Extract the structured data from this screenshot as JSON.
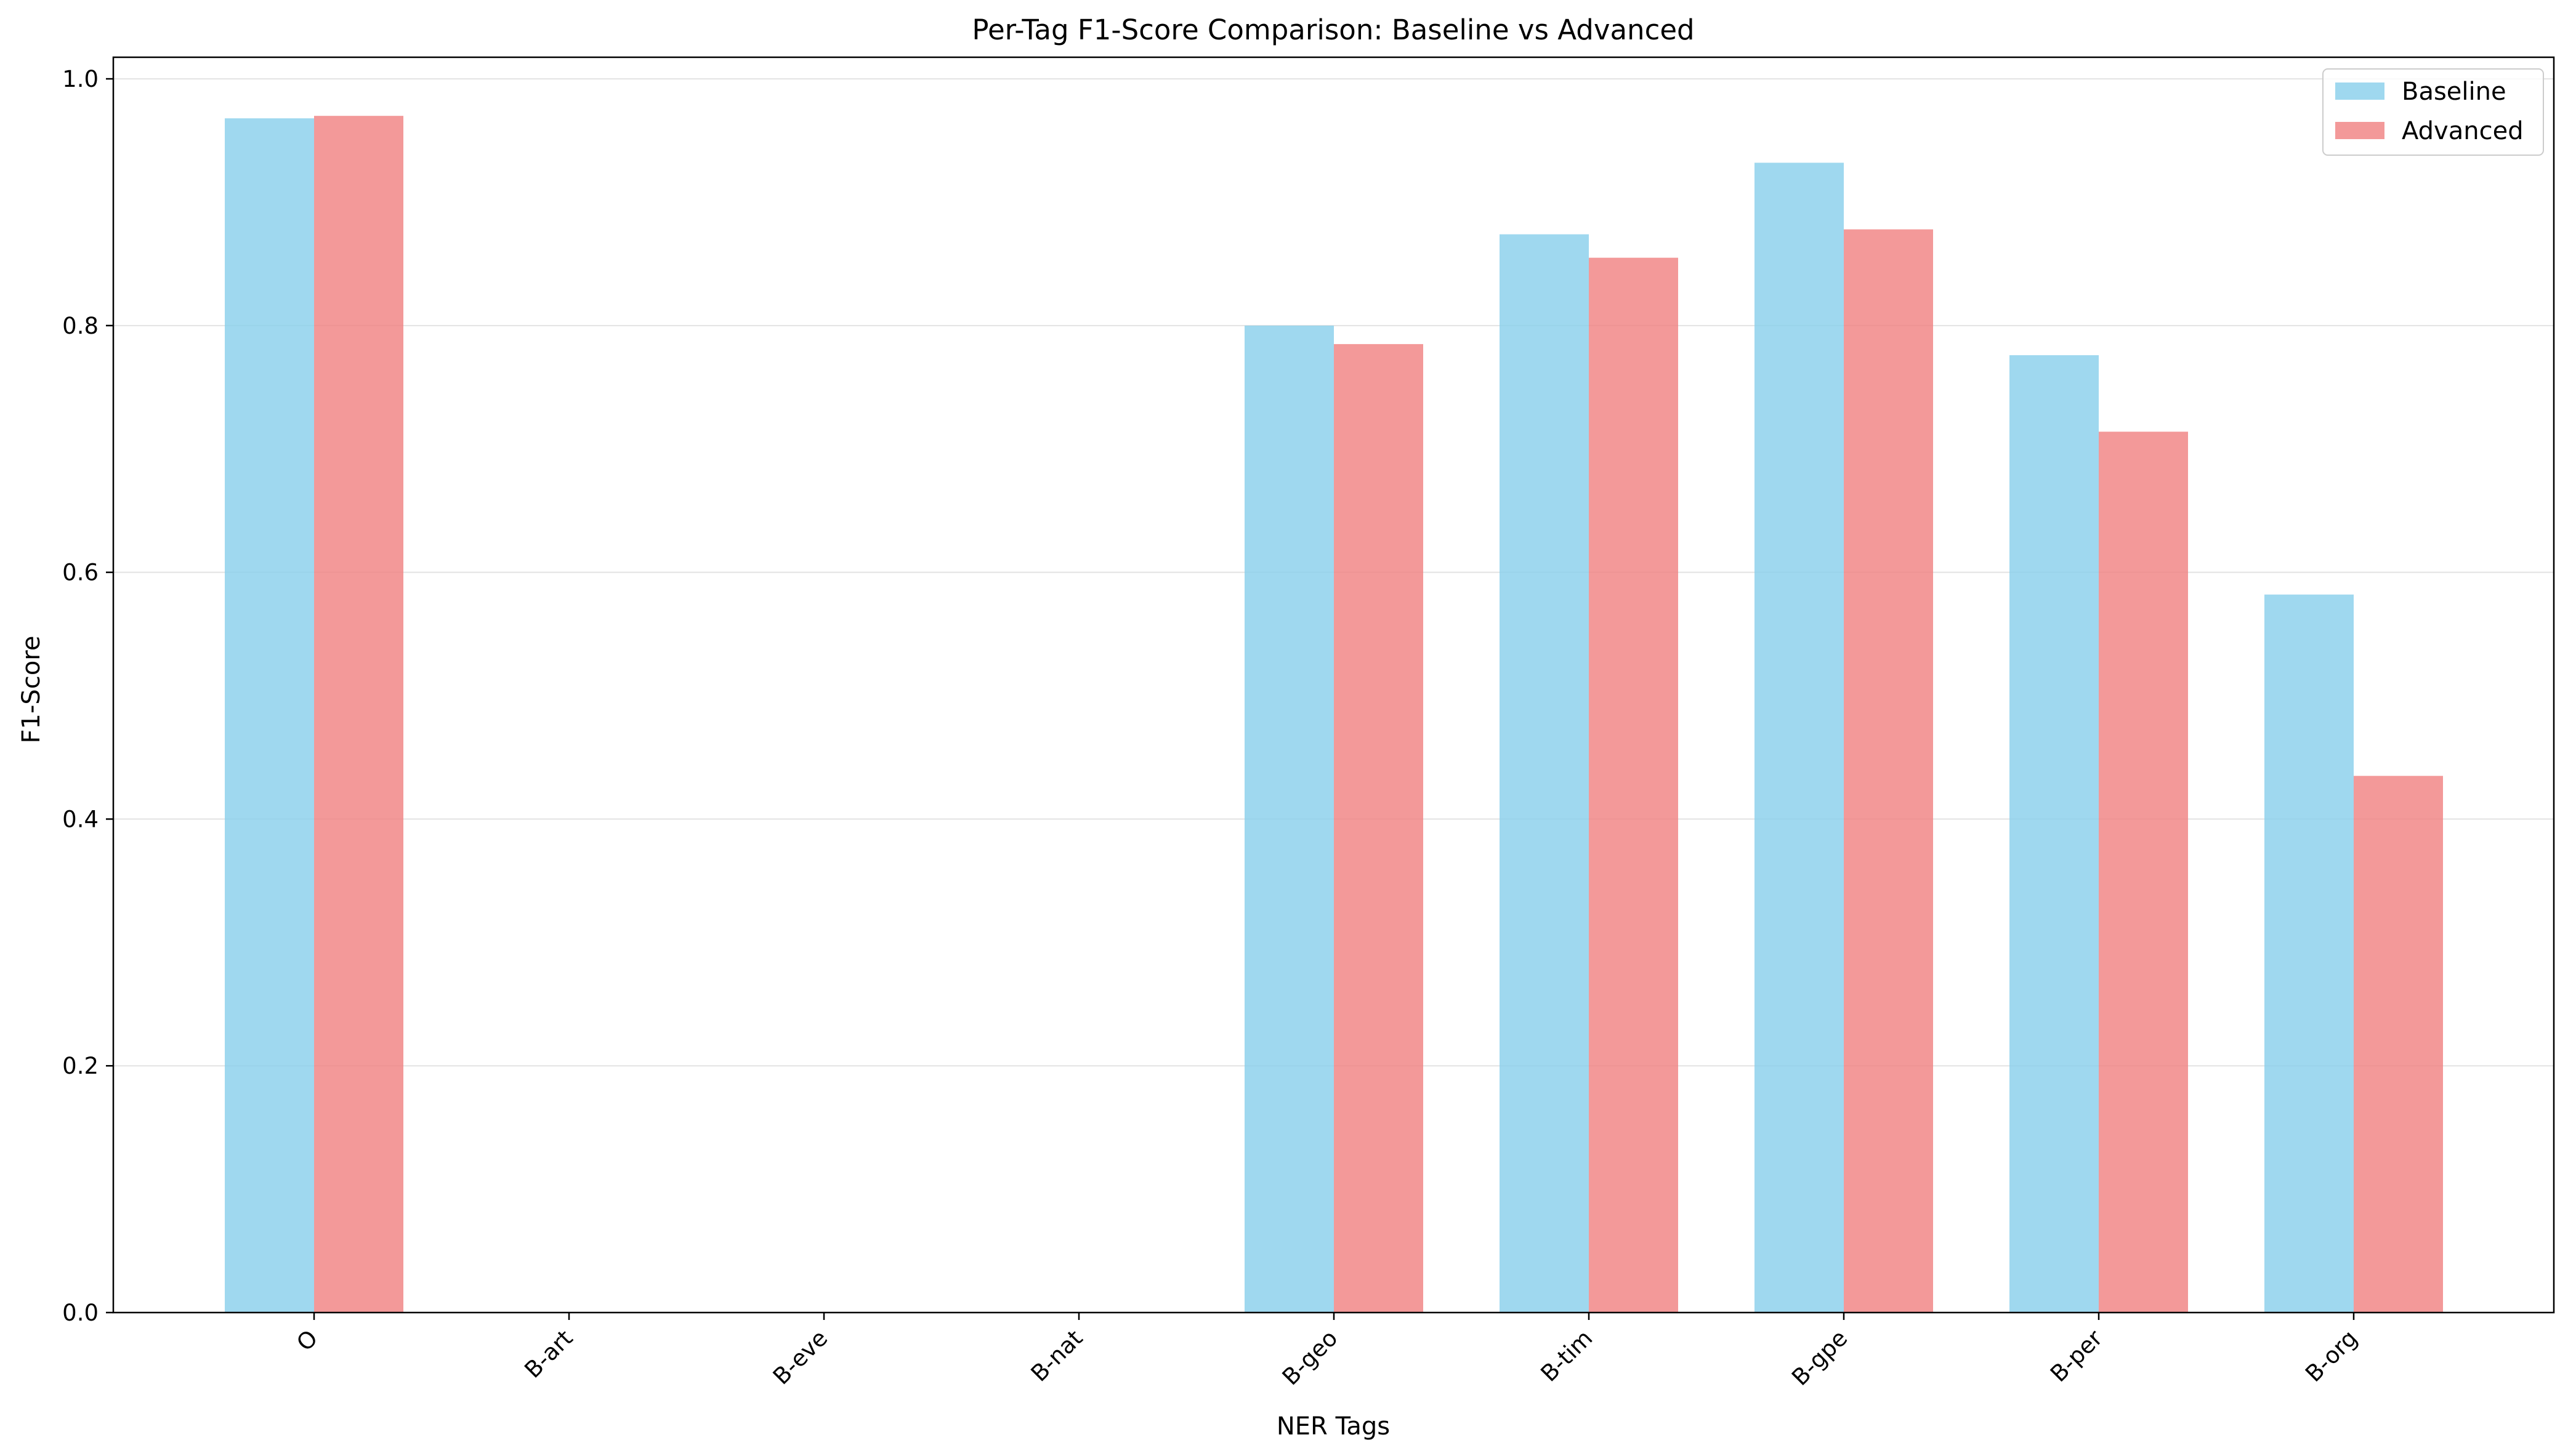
{
  "chart_data": {
    "type": "bar",
    "title": "Per-Tag F1-Score Comparison: Baseline vs Advanced",
    "xlabel": "NER Tags",
    "ylabel": "F1-Score",
    "categories": [
      "O",
      "B-art",
      "B-eve",
      "B-nat",
      "B-geo",
      "B-tim",
      "B-gpe",
      "B-per",
      "B-org"
    ],
    "series": [
      {
        "name": "Baseline",
        "color": "#87CEEB",
        "values": [
          0.968,
          0.0,
          0.0,
          0.0,
          0.8,
          0.874,
          0.932,
          0.776,
          0.582
        ]
      },
      {
        "name": "Advanced",
        "color": "#F08080",
        "values": [
          0.97,
          0.0,
          0.0,
          0.0,
          0.785,
          0.855,
          0.878,
          0.714,
          0.435
        ]
      }
    ],
    "ylim": [
      0,
      1.0175
    ],
    "yticks": [
      0.0,
      0.2,
      0.4,
      0.6,
      0.8,
      1.0
    ],
    "ytick_labels": [
      "0.0",
      "0.2",
      "0.4",
      "0.6",
      "0.8",
      "1.0"
    ],
    "grid": "y",
    "legend_position": "top-right"
  }
}
